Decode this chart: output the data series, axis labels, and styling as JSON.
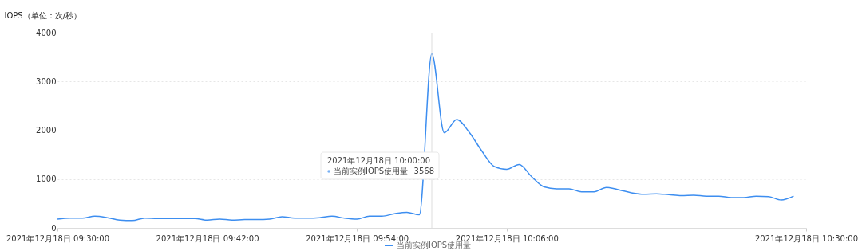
{
  "chart_data": {
    "type": "line",
    "ylabel": "IOPS（单位：次/秒）",
    "x": [
      "2021-12-18T09:30",
      "2021-12-18T09:31",
      "2021-12-18T09:32",
      "2021-12-18T09:33",
      "2021-12-18T09:34",
      "2021-12-18T09:35",
      "2021-12-18T09:36",
      "2021-12-18T09:37",
      "2021-12-18T09:38",
      "2021-12-18T09:39",
      "2021-12-18T09:40",
      "2021-12-18T09:41",
      "2021-12-18T09:42",
      "2021-12-18T09:43",
      "2021-12-18T09:44",
      "2021-12-18T09:45",
      "2021-12-18T09:46",
      "2021-12-18T09:47",
      "2021-12-18T09:48",
      "2021-12-18T09:49",
      "2021-12-18T09:50",
      "2021-12-18T09:51",
      "2021-12-18T09:52",
      "2021-12-18T09:53",
      "2021-12-18T09:54",
      "2021-12-18T09:55",
      "2021-12-18T09:56",
      "2021-12-18T09:57",
      "2021-12-18T09:58",
      "2021-12-18T09:59",
      "2021-12-18T10:00",
      "2021-12-18T10:01",
      "2021-12-18T10:02",
      "2021-12-18T10:03",
      "2021-12-18T10:04",
      "2021-12-18T10:05",
      "2021-12-18T10:06",
      "2021-12-18T10:07",
      "2021-12-18T10:08",
      "2021-12-18T10:09",
      "2021-12-18T10:10",
      "2021-12-18T10:11",
      "2021-12-18T10:12",
      "2021-12-18T10:13",
      "2021-12-18T10:14",
      "2021-12-18T10:15",
      "2021-12-18T10:16",
      "2021-12-18T10:17",
      "2021-12-18T10:18",
      "2021-12-18T10:19",
      "2021-12-18T10:20",
      "2021-12-18T10:21",
      "2021-12-18T10:22",
      "2021-12-18T10:23",
      "2021-12-18T10:24",
      "2021-12-18T10:25",
      "2021-12-18T10:26",
      "2021-12-18T10:27",
      "2021-12-18T10:28",
      "2021-12-18T10:29"
    ],
    "series": [
      {
        "name": "当前实例IOPS使用量",
        "color": "#3d8ef0",
        "values": [
          180,
          200,
          200,
          240,
          210,
          160,
          150,
          200,
          190,
          190,
          190,
          190,
          160,
          180,
          160,
          170,
          170,
          180,
          230,
          200,
          200,
          210,
          240,
          200,
          180,
          240,
          240,
          290,
          320,
          270,
          3568,
          1950,
          2220,
          1960,
          1580,
          1260,
          1200,
          1300,
          1050,
          840,
          800,
          800,
          740,
          740,
          830,
          780,
          720,
          690,
          700,
          680,
          660,
          670,
          650,
          650,
          620,
          620,
          650,
          640,
          570,
          650
        ]
      }
    ],
    "xlim": [
      "2021-12-18T09:30",
      "2021-12-18T10:30"
    ],
    "xticks": [
      {
        "value": "2021-12-18T09:30",
        "label": "2021年12月18日 09:30:00"
      },
      {
        "value": "2021-12-18T09:42",
        "label": "2021年12月18日 09:42:00"
      },
      {
        "value": "2021-12-18T09:54",
        "label": "2021年12月18日 09:54:00"
      },
      {
        "value": "2021-12-18T10:06",
        "label": "2021年12月18日 10:06:00"
      },
      {
        "value": "2021-12-18T10:30",
        "label": "2021年12月18日 10:30:00"
      }
    ],
    "ylim": [
      0,
      4000
    ],
    "yticks": [
      0,
      1000,
      2000,
      3000,
      4000
    ],
    "grid": "y",
    "legend": "bottom",
    "line_style": "solid",
    "ref_lines": [
      {
        "axis": "x",
        "value": "2021-12-18T10:00",
        "color": "#dddddd"
      }
    ],
    "annotations": [
      "2021年12月18日 10:00:00",
      "当前实例IOPS使用量",
      "3568"
    ]
  }
}
